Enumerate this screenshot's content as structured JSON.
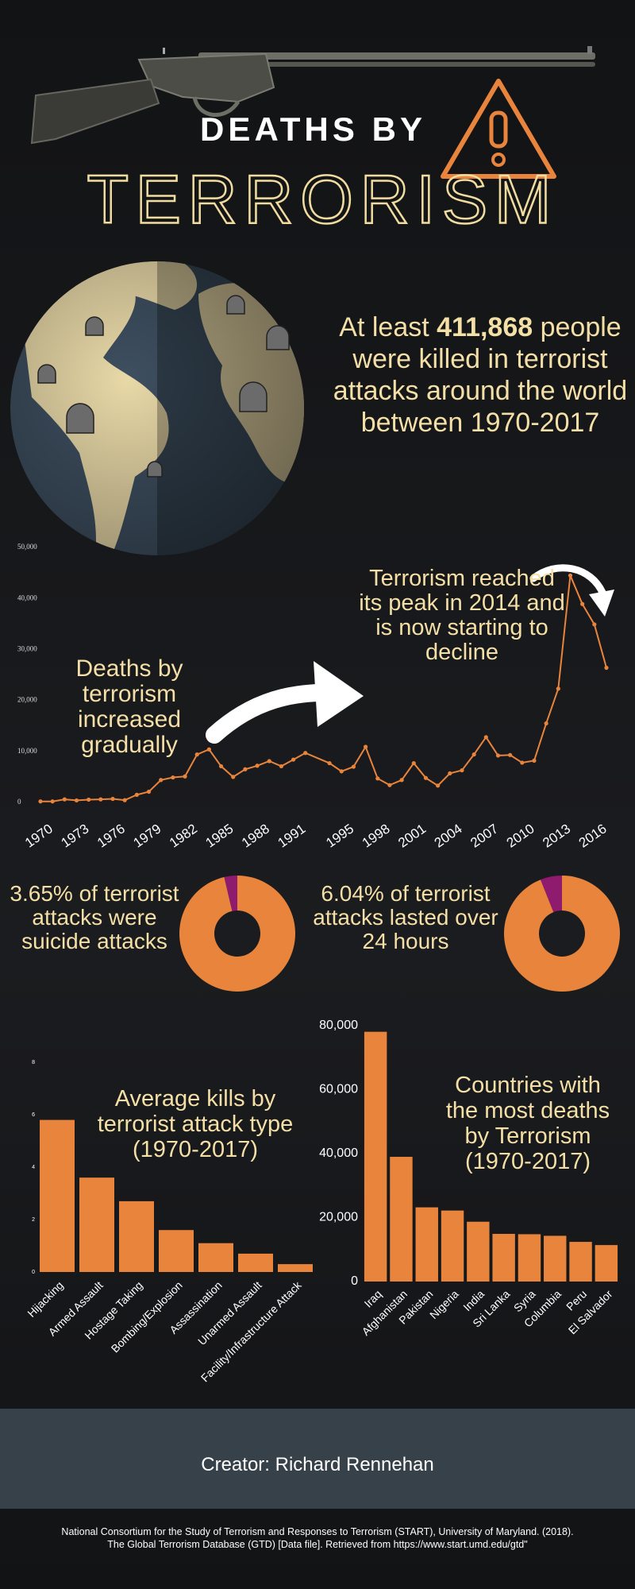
{
  "header": {
    "title_top": "DEATHS BY",
    "title_main": "TERRORISM"
  },
  "statement": {
    "before": "At least",
    "number": "411,868",
    "after": "people were killed in terrorist attacks around the world between 1970-2017"
  },
  "chart_data": [
    {
      "type": "line",
      "x": [
        1970,
        1971,
        1972,
        1973,
        1974,
        1975,
        1976,
        1977,
        1978,
        1979,
        1980,
        1981,
        1982,
        1983,
        1984,
        1985,
        1986,
        1987,
        1988,
        1989,
        1990,
        1991,
        1992,
        1994,
        1995,
        1996,
        1997,
        1998,
        1999,
        2000,
        2001,
        2002,
        2003,
        2004,
        2005,
        2006,
        2007,
        2008,
        2009,
        2010,
        2011,
        2012,
        2013,
        2014,
        2015,
        2016,
        2017
      ],
      "values": [
        200,
        200,
        600,
        400,
        550,
        600,
        700,
        450,
        1500,
        2100,
        4400,
        4900,
        5100,
        9400,
        10400,
        7100,
        5000,
        6500,
        7200,
        8100,
        7100,
        8400,
        9700,
        7700,
        6100,
        7000,
        10900,
        4700,
        3400,
        4400,
        7700,
        4800,
        3300,
        5700,
        6300,
        9400,
        12800,
        9200,
        9300,
        7800,
        8200,
        15500,
        22300,
        44500,
        38900,
        34900,
        26400
      ],
      "color": "#e8843c",
      "xlim": [
        1970,
        2017
      ],
      "xticks": [
        1970,
        1973,
        1976,
        1979,
        1982,
        1985,
        1988,
        1991,
        1995,
        1998,
        2001,
        2004,
        2007,
        2010,
        2013,
        2016
      ],
      "ylim": [
        0,
        50000
      ],
      "yticks": [
        0,
        {
          "value": 10000,
          "label": "10,000"
        },
        {
          "value": 20000,
          "label": "20,000"
        },
        {
          "value": 30000,
          "label": "30,000"
        },
        {
          "value": 40000,
          "label": "40,000"
        },
        {
          "value": 50000,
          "label": "50,000"
        }
      ],
      "grid": false,
      "annotations": [
        "Deaths by terrorism increased gradually",
        "Terrorism reached its peak in 2014 and is now starting to decline"
      ]
    },
    {
      "type": "pie",
      "donut": true,
      "caption": "3.65% of terrorist attacks were suicide attacks",
      "values": [
        3.65,
        96.35
      ],
      "colors": [
        "#8e1b6e",
        "#e8843c"
      ]
    },
    {
      "type": "pie",
      "donut": true,
      "caption": "6.04% of terrorist attacks lasted over 24 hours",
      "values": [
        6.04,
        93.96
      ],
      "colors": [
        "#8e1b6e",
        "#e8843c"
      ]
    },
    {
      "type": "bar",
      "title": "Average kills by terrorist attack type (1970-2017)",
      "categories": [
        "Hijacking",
        "Armed Assault",
        "Hostage Taking",
        "Bombing/Explosion",
        "Assassination",
        "Unarmed Assault",
        "Facility/Infrastructure Attack"
      ],
      "values": [
        5.8,
        3.6,
        2.7,
        1.6,
        1.1,
        0.7,
        0.3
      ],
      "color": "#e8843c",
      "ylim": [
        0,
        8
      ],
      "yticks": [
        0,
        2,
        4,
        6,
        8
      ]
    },
    {
      "type": "bar",
      "title": "Countries with the most deaths by Terrorism (1970-2017)",
      "categories": [
        "Iraq",
        "Afghanistan",
        "Pakistan",
        "Nigeria",
        "India",
        "Sri Lanka",
        "Syria",
        "Columbia",
        "Peru",
        "El Salvador"
      ],
      "values": [
        78100,
        39000,
        23200,
        22200,
        18700,
        14900,
        14800,
        14300,
        12400,
        11400
      ],
      "color": "#e8843c",
      "ylim": [
        0,
        80000
      ],
      "yticks": [
        0,
        {
          "value": 20000,
          "label": "20,000"
        },
        {
          "value": 40000,
          "label": "40,000"
        },
        {
          "value": 60000,
          "label": "60,000"
        },
        {
          "value": 80000,
          "label": "80,000"
        }
      ]
    }
  ],
  "footer": {
    "creator": "Creator: Richard Rennehan",
    "source": [
      "National Consortium for the Study of Terrorism and Responses to Terrorism (START), University of Maryland. (2018).",
      "The Global Terrorism Database (GTD) [Data file]. Retrieved from https://www.start.umd.edu/gtd\""
    ]
  }
}
